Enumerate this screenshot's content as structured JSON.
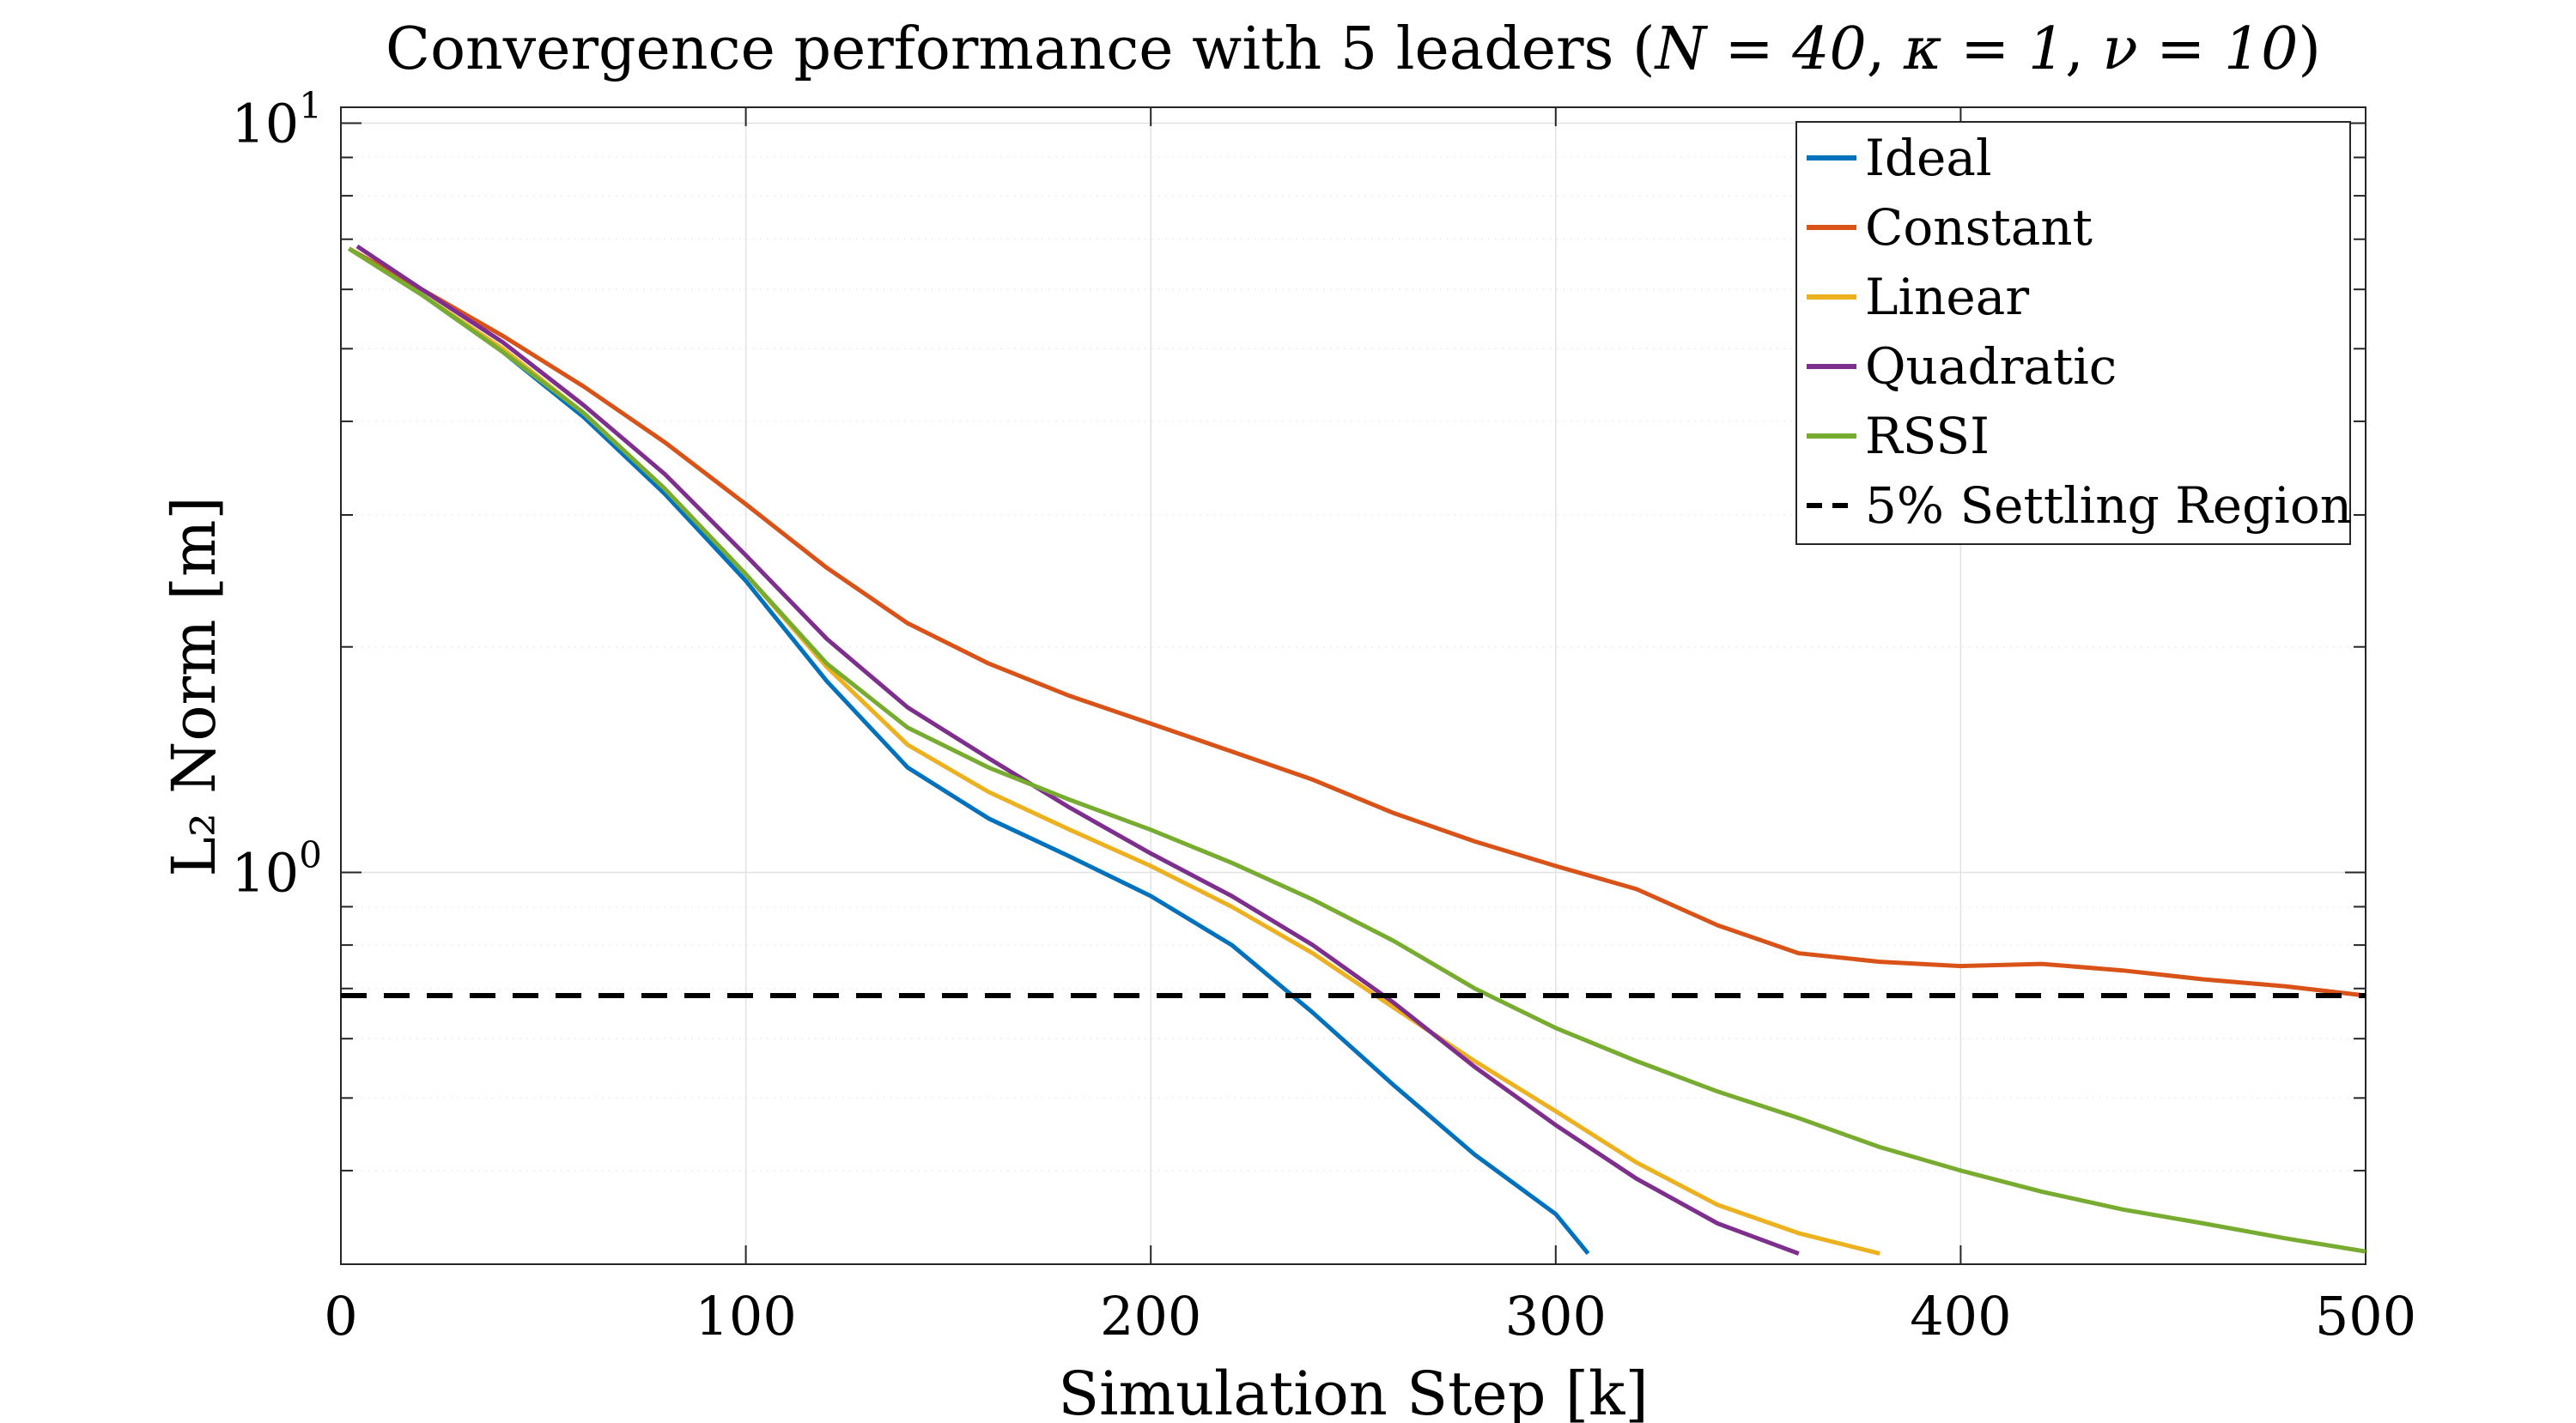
{
  "chart_data": {
    "type": "line",
    "title_prefix": "Convergence performance with 5 leaders (",
    "title_params": [
      "N = 40",
      "κ = 1",
      "ν = 10"
    ],
    "title_suffix": ")",
    "xlabel": "Simulation Step",
    "xlabel_unit": "[k]",
    "ylabel": "L₂ Norm [m]",
    "xlim": [
      0,
      500
    ],
    "ylim": [
      0.3,
      10.5
    ],
    "yscale": "log",
    "grid": true,
    "legend_position": "top-right",
    "x_ticks": [
      "0",
      "100",
      "200",
      "300",
      "400",
      "500"
    ],
    "y_ticks": [
      {
        "base": "10",
        "exp": "0",
        "value": 1
      },
      {
        "base": "10",
        "exp": "1",
        "value": 10
      }
    ],
    "threshold": {
      "name": "5% Settling Region",
      "value": 0.685,
      "color": "#000000"
    },
    "series": [
      {
        "name": "Ideal",
        "color": "#0072BD",
        "x": [
          2,
          20,
          40,
          60,
          80,
          100,
          120,
          140,
          160,
          180,
          200,
          220,
          240,
          260,
          280,
          300,
          308
        ],
        "y": [
          6.8,
          5.9,
          4.95,
          4.05,
          3.2,
          2.45,
          1.8,
          1.38,
          1.18,
          1.05,
          0.93,
          0.8,
          0.65,
          0.52,
          0.42,
          0.35,
          0.31
        ]
      },
      {
        "name": "Constant",
        "color": "#D95319",
        "x": [
          2,
          20,
          40,
          60,
          80,
          100,
          120,
          140,
          160,
          180,
          200,
          220,
          240,
          260,
          280,
          300,
          320,
          340,
          360,
          380,
          400,
          420,
          440,
          460,
          480,
          500
        ],
        "y": [
          6.8,
          6.0,
          5.2,
          4.45,
          3.75,
          3.1,
          2.55,
          2.15,
          1.9,
          1.72,
          1.58,
          1.45,
          1.33,
          1.2,
          1.1,
          1.02,
          0.95,
          0.85,
          0.78,
          0.76,
          0.75,
          0.755,
          0.74,
          0.72,
          0.705,
          0.685
        ]
      },
      {
        "name": "Linear",
        "color": "#EDB120",
        "x": [
          2,
          20,
          40,
          60,
          80,
          100,
          120,
          140,
          160,
          180,
          200,
          220,
          240,
          260,
          280,
          300,
          320,
          340,
          360,
          380
        ],
        "y": [
          6.8,
          5.9,
          5.0,
          4.1,
          3.25,
          2.5,
          1.88,
          1.48,
          1.28,
          1.14,
          1.02,
          0.9,
          0.78,
          0.66,
          0.56,
          0.48,
          0.41,
          0.36,
          0.33,
          0.31
        ]
      },
      {
        "name": "Quadratic",
        "color": "#7E2F8E",
        "x": [
          4,
          20,
          40,
          60,
          80,
          100,
          120,
          140,
          160,
          180,
          200,
          220,
          240,
          260,
          280,
          300,
          320,
          340,
          360
        ],
        "y": [
          6.85,
          6.0,
          5.1,
          4.2,
          3.4,
          2.65,
          2.05,
          1.66,
          1.42,
          1.22,
          1.06,
          0.93,
          0.8,
          0.67,
          0.55,
          0.46,
          0.39,
          0.34,
          0.31
        ]
      },
      {
        "name": "RSSI",
        "color": "#77AC30",
        "x": [
          2,
          20,
          40,
          60,
          80,
          100,
          120,
          140,
          160,
          180,
          200,
          220,
          240,
          260,
          280,
          300,
          320,
          340,
          360,
          380,
          400,
          420,
          440,
          460,
          480,
          500
        ],
        "y": [
          6.8,
          5.9,
          4.95,
          4.1,
          3.25,
          2.5,
          1.9,
          1.56,
          1.38,
          1.25,
          1.14,
          1.03,
          0.92,
          0.81,
          0.7,
          0.62,
          0.56,
          0.51,
          0.47,
          0.43,
          0.4,
          0.375,
          0.355,
          0.34,
          0.325,
          0.312
        ]
      }
    ]
  }
}
